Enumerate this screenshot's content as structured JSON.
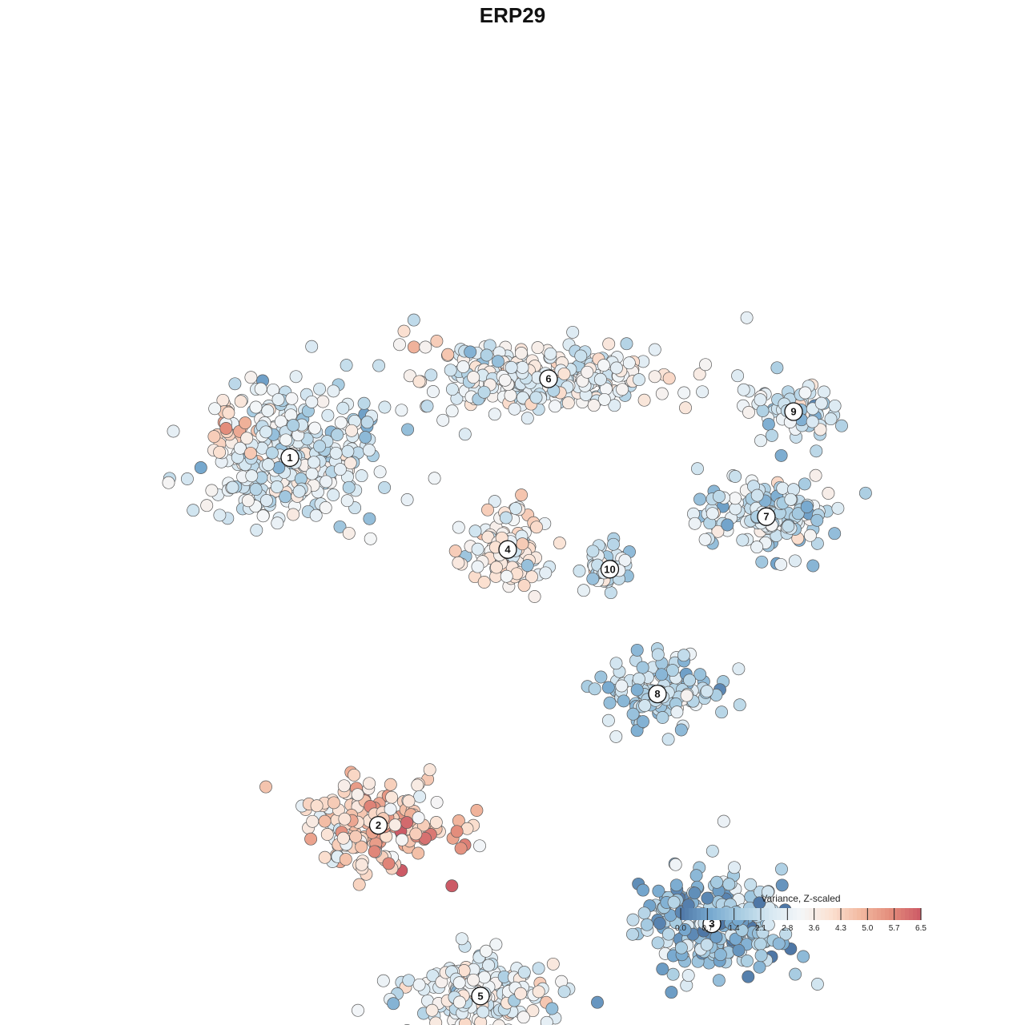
{
  "chart_data": {
    "type": "scatter",
    "title": "ERP29",
    "xlabel": "",
    "ylabel": "",
    "grid": false,
    "legend_placement": "bottom-right",
    "color_scale": {
      "title": "Variance, Z-scaled",
      "min": 0.0,
      "max": 6.5,
      "ticks": [
        "0.0",
        "0.7",
        "1.4",
        "2.1",
        "2.8",
        "3.6",
        "4.3",
        "5.0",
        "5.7",
        "6.5"
      ],
      "colors": [
        "#4e77a6",
        "#77a9cf",
        "#a9cde2",
        "#d7e8f2",
        "#f4f6f8",
        "#fbe1d2",
        "#f2b9a0",
        "#e38c7b",
        "#cc5a66"
      ]
    },
    "clusters": [
      {
        "label": "1",
        "x": -62,
        "y": 38,
        "spread_x": 12,
        "spread_y": 9,
        "mean_value": 2.6
      },
      {
        "label": "2",
        "x": -49,
        "y": -18,
        "spread_x": 10,
        "spread_y": 6,
        "mean_value": 4.0
      },
      {
        "label": "3",
        "x": 0,
        "y": -33,
        "spread_x": 10,
        "spread_y": 7,
        "mean_value": 1.3
      },
      {
        "label": "4",
        "x": -30,
        "y": 24,
        "spread_x": 6,
        "spread_y": 6,
        "mean_value": 3.5
      },
      {
        "label": "5",
        "x": -34,
        "y": -44,
        "spread_x": 10,
        "spread_y": 6,
        "mean_value": 2.9
      },
      {
        "label": "6",
        "x": -24,
        "y": 50,
        "spread_x": 18,
        "spread_y": 5,
        "mean_value": 2.9
      },
      {
        "label": "7",
        "x": 8,
        "y": 29,
        "spread_x": 9,
        "spread_y": 5,
        "mean_value": 2.2
      },
      {
        "label": "8",
        "x": -8,
        "y": 2,
        "spread_x": 8,
        "spread_y": 5,
        "mean_value": 2.0
      },
      {
        "label": "9",
        "x": 12,
        "y": 45,
        "spread_x": 6,
        "spread_y": 4,
        "mean_value": 2.2
      },
      {
        "label": "10",
        "x": -15,
        "y": 21,
        "spread_x": 4,
        "spread_y": 4,
        "mean_value": 2.3
      }
    ],
    "hotspots": [
      {
        "x": -72,
        "y": 43,
        "value": 5.5
      },
      {
        "x": -47,
        "y": -19,
        "value": 5.8
      },
      {
        "x": -39,
        "y": -23,
        "value": 5.9
      },
      {
        "x": -43,
        "y": -28,
        "value": 5.6
      },
      {
        "x": -22,
        "y": -31,
        "value": 5.8
      },
      {
        "x": -35,
        "y": -12,
        "value": 5.2
      }
    ]
  }
}
